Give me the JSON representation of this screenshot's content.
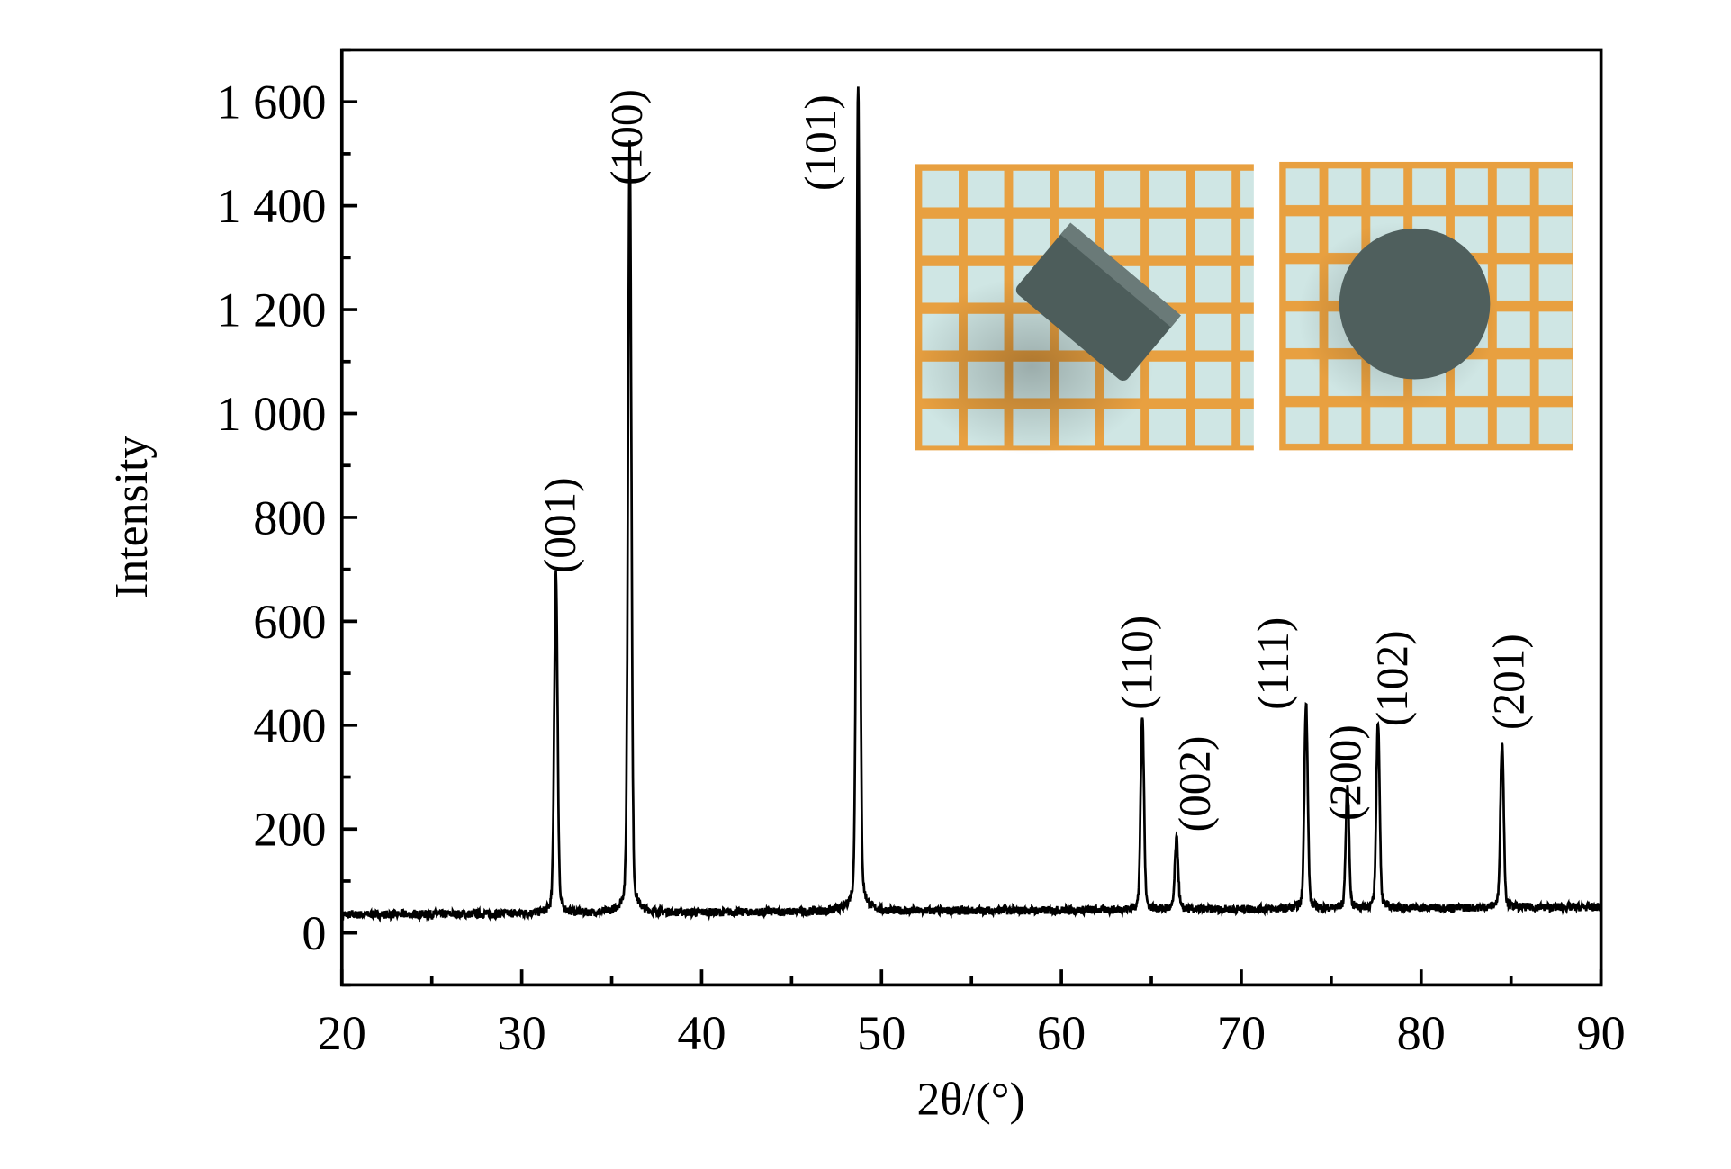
{
  "chart_data": {
    "type": "line",
    "title": "",
    "xlabel": "2θ/(°)",
    "ylabel": "Intensity",
    "xlim": [
      20,
      90
    ],
    "ylim": [
      -100,
      1700
    ],
    "x_ticks": [
      20,
      30,
      40,
      50,
      60,
      70,
      80,
      90
    ],
    "x_tick_labels": [
      "20",
      "30",
      "40",
      "50",
      "60",
      "70",
      "80",
      "90"
    ],
    "y_ticks": [
      0,
      200,
      400,
      600,
      800,
      1000,
      1200,
      1400,
      1600
    ],
    "y_tick_labels": [
      "0",
      "200",
      "400",
      "600",
      "800",
      "1 000",
      "1 200",
      "1 400",
      "1 600"
    ],
    "grid": false,
    "baseline": {
      "start": 35,
      "end": 50
    },
    "peaks": [
      {
        "label": "(001)",
        "x": 31.9,
        "y": 640
      },
      {
        "label": "(100)",
        "x": 36.0,
        "y": 1410
      },
      {
        "label": "(101)",
        "x": 48.7,
        "y": 1510
      },
      {
        "label": "(110)",
        "x": 64.5,
        "y": 380
      },
      {
        "label": "(002)",
        "x": 66.4,
        "y": 160
      },
      {
        "label": "(111)",
        "x": 73.6,
        "y": 405
      },
      {
        "label": "(200)",
        "x": 75.9,
        "y": 250
      },
      {
        "label": "(102)",
        "x": 77.6,
        "y": 370
      },
      {
        "label": "(201)",
        "x": 84.5,
        "y": 330
      }
    ],
    "series_color": "#000000"
  },
  "inset": {
    "grid_color": "#e8a040",
    "cell_color": "#cfe6e4",
    "sample_color": "#4a5a58"
  }
}
